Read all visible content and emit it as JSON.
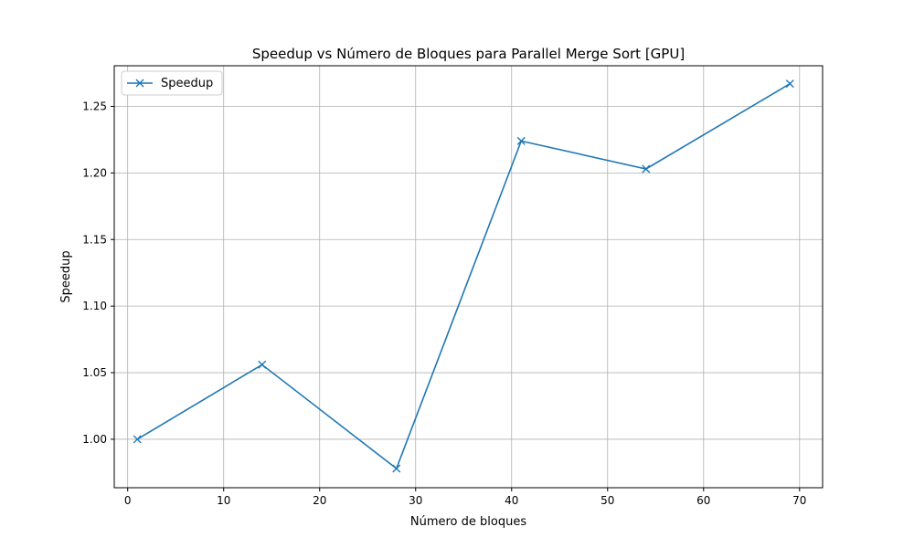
{
  "chart_data": {
    "type": "line",
    "title": "Speedup vs Número de Bloques para Parallel Merge Sort [GPU]",
    "xlabel": "Número de bloques",
    "ylabel": "Speedup",
    "xlim": [
      -1.4,
      72.4
    ],
    "ylim": [
      0.9636,
      1.2805
    ],
    "x_ticks": [
      0,
      10,
      20,
      30,
      40,
      50,
      60,
      70
    ],
    "y_ticks": [
      1.0,
      1.05,
      1.1,
      1.15,
      1.2,
      1.25
    ],
    "y_tick_labels": [
      "1.00",
      "1.05",
      "1.10",
      "1.15",
      "1.20",
      "1.25"
    ],
    "grid": true,
    "legend_position": "top-left",
    "series": [
      {
        "name": "Speedup",
        "color": "#1f77b4",
        "marker": "x",
        "x": [
          1,
          14,
          28,
          41,
          54,
          69
        ],
        "y": [
          1.0,
          1.056,
          0.978,
          1.224,
          1.203,
          1.267
        ]
      }
    ]
  }
}
